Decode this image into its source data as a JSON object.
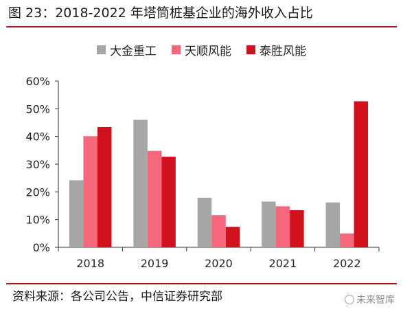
{
  "page": {
    "title": "图 23：2018-2022 年塔筒桩基企业的海外收入占比",
    "source": "资料来源：各公司公告，中信证券研究部",
    "watermark": "未来智库"
  },
  "chart_data": {
    "type": "bar",
    "title": "",
    "xlabel": "",
    "ylabel": "",
    "categories": [
      "2018",
      "2019",
      "2020",
      "2021",
      "2022"
    ],
    "ylim": [
      0,
      60
    ],
    "yticks": [
      0,
      10,
      20,
      30,
      40,
      50,
      60
    ],
    "ytick_labels": [
      "0%",
      "10%",
      "20%",
      "30%",
      "40%",
      "50%",
      "60%"
    ],
    "grid": false,
    "legend_position": "top-center",
    "series": [
      {
        "name": "大金重工",
        "color": "#a6a6a6",
        "values": [
          24.2,
          46.0,
          17.9,
          16.5,
          16.2
        ]
      },
      {
        "name": "天顺风能",
        "color": "#f5677a",
        "values": [
          40.1,
          34.8,
          11.6,
          14.8,
          5.0
        ]
      },
      {
        "name": "泰胜风能",
        "color": "#d2111e",
        "values": [
          43.4,
          32.7,
          7.4,
          13.4,
          52.7
        ]
      }
    ]
  }
}
